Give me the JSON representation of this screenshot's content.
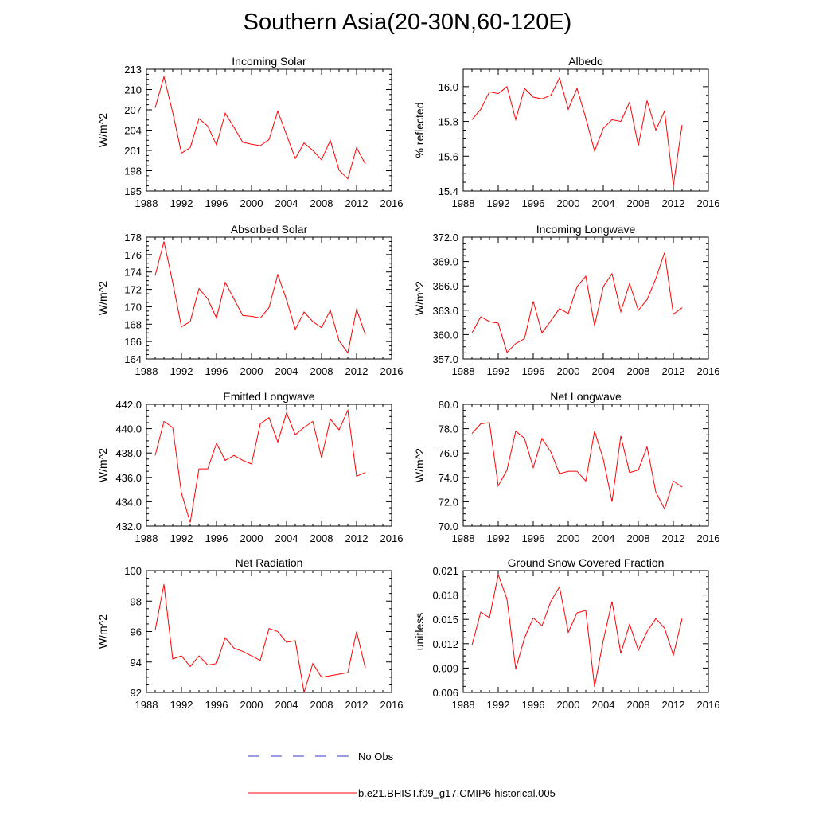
{
  "title": "Southern Asia(20-30N,60-120E)",
  "legend": {
    "obs_label": "No Obs",
    "model_label": "b.e21.BHIST.f09_g17.CMIP6-historical.005",
    "obs_color": "#3a3acc",
    "model_color": "#ff0000"
  },
  "chart_data": [
    {
      "type": "line",
      "title": "Incoming Solar",
      "ylabel": "W/m^2",
      "xlabel": "",
      "xlim": [
        1988,
        2016
      ],
      "xticks": [
        1988,
        1992,
        1996,
        2000,
        2004,
        2008,
        2012,
        2016
      ],
      "ylim": [
        195,
        213
      ],
      "yticks": [
        "195",
        "198",
        "201",
        "204",
        "207",
        "210",
        "213"
      ],
      "x": [
        1989,
        1990,
        1991,
        1992,
        1993,
        1994,
        1995,
        1996,
        1997,
        1998,
        1999,
        2000,
        2001,
        2002,
        2003,
        2004,
        2005,
        2006,
        2007,
        2008,
        2009,
        2010,
        2011,
        2012,
        2013
      ],
      "series": [
        {
          "name": "b.e21.BHIST.f09_g17.CMIP6-historical.005",
          "values": [
            207.3,
            211.9,
            206.6,
            200.6,
            201.4,
            205.7,
            204.6,
            201.8,
            206.5,
            204.4,
            202.2,
            201.9,
            201.7,
            202.6,
            206.8,
            203.3,
            199.8,
            202.1,
            201.0,
            199.6,
            202.5,
            198.1,
            196.8,
            201.4,
            199.0
          ]
        }
      ]
    },
    {
      "type": "line",
      "title": "Albedo",
      "ylabel": "% reflected",
      "xlabel": "",
      "xlim": [
        1988,
        2016
      ],
      "xticks": [
        1988,
        1992,
        1996,
        2000,
        2004,
        2008,
        2012,
        2016
      ],
      "ylim": [
        15.4,
        16.1
      ],
      "yticks": [
        "15.4",
        "15.6",
        "15.8",
        "16.0"
      ],
      "x": [
        1989,
        1990,
        1991,
        1992,
        1993,
        1994,
        1995,
        1996,
        1997,
        1998,
        1999,
        2000,
        2001,
        2002,
        2003,
        2004,
        2005,
        2006,
        2007,
        2008,
        2009,
        2010,
        2011,
        2012,
        2013
      ],
      "series": [
        {
          "name": "b.e21.BHIST.f09_g17.CMIP6-historical.005",
          "values": [
            15.81,
            15.87,
            15.97,
            15.96,
            16.0,
            15.81,
            15.99,
            15.94,
            15.93,
            15.95,
            16.05,
            15.87,
            15.99,
            15.82,
            15.63,
            15.76,
            15.81,
            15.8,
            15.91,
            15.66,
            15.92,
            15.75,
            15.86,
            15.43,
            15.78
          ]
        }
      ]
    },
    {
      "type": "line",
      "title": "Absorbed Solar",
      "ylabel": "W/m^2",
      "xlabel": "",
      "xlim": [
        1988,
        2016
      ],
      "xticks": [
        1988,
        1992,
        1996,
        2000,
        2004,
        2008,
        2012,
        2016
      ],
      "ylim": [
        164,
        178
      ],
      "yticks": [
        "164",
        "166",
        "168",
        "170",
        "172",
        "174",
        "176",
        "178"
      ],
      "x": [
        1989,
        1990,
        1991,
        1992,
        1993,
        1994,
        1995,
        1996,
        1997,
        1998,
        1999,
        2000,
        2001,
        2002,
        2003,
        2004,
        2005,
        2006,
        2007,
        2008,
        2009,
        2010,
        2011,
        2012,
        2013
      ],
      "series": [
        {
          "name": "b.e21.BHIST.f09_g17.CMIP6-historical.005",
          "values": [
            173.6,
            177.5,
            172.8,
            167.7,
            168.3,
            172.1,
            170.9,
            168.7,
            172.8,
            170.9,
            169.0,
            168.9,
            168.7,
            169.9,
            173.7,
            170.8,
            167.4,
            169.4,
            168.3,
            167.6,
            169.6,
            166.1,
            164.7,
            169.7,
            166.8
          ]
        }
      ]
    },
    {
      "type": "line",
      "title": "Incoming Longwave",
      "ylabel": "W/m^2",
      "xlabel": "",
      "xlim": [
        1988,
        2016
      ],
      "xticks": [
        1988,
        1992,
        1996,
        2000,
        2004,
        2008,
        2012,
        2016
      ],
      "ylim": [
        357,
        372
      ],
      "yticks": [
        "357.0",
        "360.0",
        "363.0",
        "366.0",
        "369.0",
        "372.0"
      ],
      "x": [
        1989,
        1990,
        1991,
        1992,
        1993,
        1994,
        1995,
        1996,
        1997,
        1998,
        1999,
        2000,
        2001,
        2002,
        2003,
        2004,
        2005,
        2006,
        2007,
        2008,
        2009,
        2010,
        2011,
        2012,
        2013
      ],
      "series": [
        {
          "name": "b.e21.BHIST.f09_g17.CMIP6-historical.005",
          "values": [
            360.2,
            362.2,
            361.6,
            361.4,
            357.8,
            358.9,
            359.5,
            364.1,
            360.2,
            361.7,
            363.2,
            362.6,
            365.9,
            367.2,
            361.1,
            365.9,
            367.5,
            362.8,
            366.3,
            363.0,
            364.3,
            366.9,
            370.1,
            362.5,
            363.3
          ]
        }
      ]
    },
    {
      "type": "line",
      "title": "Emitted Longwave",
      "ylabel": "W/m^2",
      "xlabel": "",
      "xlim": [
        1988,
        2016
      ],
      "xticks": [
        1988,
        1992,
        1996,
        2000,
        2004,
        2008,
        2012,
        2016
      ],
      "ylim": [
        432,
        442
      ],
      "yticks": [
        "432.0",
        "434.0",
        "436.0",
        "438.0",
        "440.0",
        "442.0"
      ],
      "x": [
        1989,
        1990,
        1991,
        1992,
        1993,
        1994,
        1995,
        1996,
        1997,
        1998,
        1999,
        2000,
        2001,
        2002,
        2003,
        2004,
        2005,
        2006,
        2007,
        2008,
        2009,
        2010,
        2011,
        2012,
        2013
      ],
      "series": [
        {
          "name": "b.e21.BHIST.f09_g17.CMIP6-historical.005",
          "values": [
            437.8,
            440.6,
            440.1,
            434.7,
            432.3,
            436.7,
            436.7,
            438.8,
            437.4,
            437.8,
            437.4,
            437.1,
            440.4,
            440.9,
            438.9,
            441.3,
            439.5,
            440.1,
            440.6,
            437.6,
            440.8,
            439.9,
            441.5,
            436.1,
            436.4
          ]
        }
      ]
    },
    {
      "type": "line",
      "title": "Net Longwave",
      "ylabel": "W/m^2",
      "xlabel": "",
      "xlim": [
        1988,
        2016
      ],
      "xticks": [
        1988,
        1992,
        1996,
        2000,
        2004,
        2008,
        2012,
        2016
      ],
      "ylim": [
        70,
        80
      ],
      "yticks": [
        "70.0",
        "72.0",
        "74.0",
        "76.0",
        "78.0",
        "80.0"
      ],
      "x": [
        1989,
        1990,
        1991,
        1992,
        1993,
        1994,
        1995,
        1996,
        1997,
        1998,
        1999,
        2000,
        2001,
        2002,
        2003,
        2004,
        2005,
        2006,
        2007,
        2008,
        2009,
        2010,
        2011,
        2012,
        2013
      ],
      "series": [
        {
          "name": "b.e21.BHIST.f09_g17.CMIP6-historical.005",
          "values": [
            77.6,
            78.4,
            78.5,
            73.3,
            74.6,
            77.8,
            77.2,
            74.8,
            77.2,
            76.1,
            74.3,
            74.5,
            74.5,
            73.7,
            77.8,
            75.5,
            72.0,
            77.4,
            74.4,
            74.6,
            76.5,
            72.8,
            71.4,
            73.7,
            73.2
          ]
        }
      ]
    },
    {
      "type": "line",
      "title": "Net Radiation",
      "ylabel": "W/m^2",
      "xlabel": "",
      "xlim": [
        1988,
        2016
      ],
      "xticks": [
        1988,
        1992,
        1996,
        2000,
        2004,
        2008,
        2012,
        2016
      ],
      "ylim": [
        92,
        100
      ],
      "yticks": [
        "92",
        "94",
        "96",
        "98",
        "100"
      ],
      "x": [
        1989,
        1990,
        1991,
        1992,
        1993,
        1994,
        1995,
        1996,
        1997,
        1998,
        1999,
        2000,
        2001,
        2002,
        2003,
        2004,
        2005,
        2006,
        2007,
        2008,
        2009,
        2010,
        2011,
        2012,
        2013
      ],
      "series": [
        {
          "name": "b.e21.BHIST.f09_g17.CMIP6-historical.005",
          "values": [
            96.1,
            99.1,
            94.2,
            94.4,
            93.7,
            94.4,
            93.8,
            93.9,
            95.6,
            94.9,
            94.7,
            94.4,
            94.1,
            96.2,
            96.0,
            95.3,
            95.4,
            92.0,
            93.9,
            93.0,
            93.1,
            93.2,
            93.3,
            96.0,
            93.6
          ]
        }
      ]
    },
    {
      "type": "line",
      "title": "Ground Snow Covered Fraction",
      "ylabel": "unitless",
      "xlabel": "",
      "xlim": [
        1988,
        2016
      ],
      "xticks": [
        1988,
        1992,
        1996,
        2000,
        2004,
        2008,
        2012,
        2016
      ],
      "ylim": [
        0.006,
        0.021
      ],
      "yticks": [
        "0.006",
        "0.009",
        "0.012",
        "0.015",
        "0.018",
        "0.021"
      ],
      "x": [
        1989,
        1990,
        1991,
        1992,
        1993,
        1994,
        1995,
        1996,
        1997,
        1998,
        1999,
        2000,
        2001,
        2002,
        2003,
        2004,
        2005,
        2006,
        2007,
        2008,
        2009,
        2010,
        2011,
        2012,
        2013
      ],
      "series": [
        {
          "name": "b.e21.BHIST.f09_g17.CMIP6-historical.005",
          "values": [
            0.0118,
            0.0159,
            0.0152,
            0.0205,
            0.0175,
            0.0089,
            0.0127,
            0.0152,
            0.0142,
            0.0172,
            0.019,
            0.0134,
            0.0158,
            0.0161,
            0.0067,
            0.0124,
            0.0172,
            0.0108,
            0.0144,
            0.0112,
            0.0135,
            0.0151,
            0.0139,
            0.0106,
            0.0151
          ]
        }
      ]
    }
  ]
}
